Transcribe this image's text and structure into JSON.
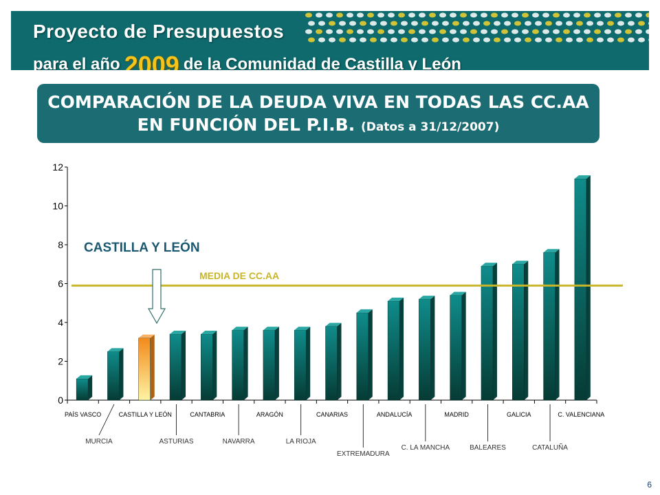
{
  "header": {
    "line1": "Proyecto de Presupuestos",
    "line2_pre": "para el año",
    "year": "2009",
    "line2_post": "de la Comunidad de Castilla y León"
  },
  "title": {
    "main": "COMPARACIÓN DE LA DEUDA VIVA EN TODAS LAS CC.AA EN FUNCIÓN DEL P.I.B.",
    "sub": "(Datos a 31/12/2007)"
  },
  "page_number": "6",
  "colors": {
    "bar": "#0d7f80",
    "highlight": "#f4a43a",
    "mean_line": "#c8b528",
    "banner": "#0e6a6d"
  },
  "chart_data": {
    "type": "bar",
    "categories": [
      "PAÍS VASCO",
      "MURCIA",
      "CASTILLA Y LEÓN",
      "ASTURIAS",
      "CANTABRIA",
      "NAVARRA",
      "ARAGÓN",
      "LA RIOJA",
      "CANARIAS",
      "EXTREMADURA",
      "ANDALUCÍA",
      "C. LA MANCHA",
      "MADRID",
      "BALEARES",
      "GALICIA",
      "CATALUÑA",
      "C. VALENCIANA"
    ],
    "values": [
      1.1,
      2.5,
      3.2,
      3.4,
      3.4,
      3.6,
      3.6,
      3.6,
      3.8,
      4.5,
      5.1,
      5.2,
      5.4,
      6.9,
      7.0,
      7.6,
      11.4
    ],
    "highlight_category": "CASTILLA Y LEÓN",
    "highlight_label": "CASTILLA Y LEÓN",
    "mean_value": 5.9,
    "mean_label": "MEDIA DE CC.AA",
    "ylim": [
      0,
      12
    ],
    "yticks": [
      0,
      2,
      4,
      6,
      8,
      10,
      12
    ],
    "xlabel": "",
    "ylabel": "",
    "grid": false
  }
}
